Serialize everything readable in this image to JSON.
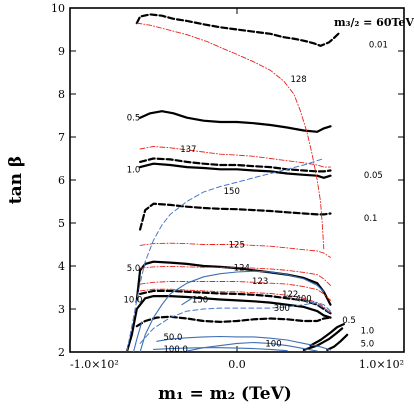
{
  "chart_data": {
    "type": "line",
    "title": "",
    "xlabel": "m₁ = m₂ (TeV)",
    "ylabel": "tan β",
    "xlim": [
      -100,
      100
    ],
    "ylim": [
      2,
      10
    ],
    "x_ticks": [
      -100,
      0,
      100
    ],
    "x_tick_labels": [
      "-1.0×10²",
      "0.0",
      "1.0×10²"
    ],
    "y_ticks": [
      2,
      3,
      4,
      5,
      6,
      7,
      8,
      9,
      10
    ],
    "y_tick_labels": [
      "2",
      "3",
      "4",
      "5",
      "6",
      "7",
      "8",
      "9",
      "10"
    ],
    "annotation": "m₃/₂ = 60TeV",
    "grid": false,
    "colors": {
      "black_solid": "#000000",
      "black_dashed": "#000000",
      "red_dashdot": "#e8231c",
      "blue_dashed": "#4a78c8",
      "blue_solid": "#3f6fb5"
    },
    "series": [
      {
        "label": "0.01",
        "style": "black_dashed",
        "label_pos": [
          79,
          9.15
        ],
        "x": [
          -60,
          -58,
          -52,
          -45,
          -38,
          -30,
          -20,
          -10,
          0,
          10,
          20,
          28,
          35,
          42,
          46,
          50,
          55,
          58,
          62
        ],
        "y": [
          9.65,
          9.8,
          9.85,
          9.82,
          9.75,
          9.7,
          9.62,
          9.55,
          9.5,
          9.45,
          9.4,
          9.32,
          9.28,
          9.22,
          9.18,
          9.12,
          9.2,
          9.3,
          9.45
        ]
      },
      {
        "label": "0.5",
        "style": "black_solid",
        "label_pos": [
          -66,
          7.45
        ],
        "x": [
          -58,
          -52,
          -45,
          -38,
          -30,
          -20,
          -10,
          0,
          10,
          20,
          30,
          40,
          48,
          52,
          56
        ],
        "y": [
          7.45,
          7.55,
          7.6,
          7.55,
          7.45,
          7.38,
          7.35,
          7.35,
          7.32,
          7.28,
          7.22,
          7.15,
          7.12,
          7.2,
          7.25
        ]
      },
      {
        "label": "1.0",
        "style": "black_solid",
        "label_pos": [
          -66,
          6.25
        ],
        "x": [
          -58,
          -50,
          -40,
          -30,
          -20,
          -10,
          0,
          10,
          20,
          30,
          40,
          48,
          52,
          56
        ],
        "y": [
          6.3,
          6.38,
          6.35,
          6.3,
          6.28,
          6.25,
          6.25,
          6.22,
          6.2,
          6.15,
          6.12,
          6.1,
          6.05,
          6.1
        ]
      },
      {
        "label": "0.05",
        "style": "black_dashed",
        "label_pos": [
          76,
          6.12
        ],
        "x": [
          -58,
          -50,
          -40,
          -30,
          -20,
          -10,
          0,
          10,
          20,
          30,
          40,
          48,
          52,
          56
        ],
        "y": [
          6.42,
          6.5,
          6.48,
          6.42,
          6.38,
          6.35,
          6.35,
          6.32,
          6.3,
          6.25,
          6.22,
          6.2,
          6.2,
          6.22
        ]
      },
      {
        "label": "0.1",
        "style": "black_dashed",
        "label_pos": [
          76,
          5.12
        ],
        "x": [
          -58,
          -55,
          -50,
          -40,
          -30,
          -20,
          -10,
          0,
          10,
          20,
          30,
          40,
          48,
          52,
          56
        ],
        "y": [
          4.85,
          5.3,
          5.45,
          5.42,
          5.38,
          5.35,
          5.33,
          5.32,
          5.3,
          5.28,
          5.25,
          5.22,
          5.2,
          5.2,
          5.22
        ]
      },
      {
        "label": "5.0",
        "style": "black_solid",
        "label_pos": [
          -66,
          3.95
        ],
        "x": [
          -60,
          -58,
          -55,
          -50,
          -40,
          -30,
          -20,
          -10,
          0,
          10,
          20,
          30,
          40,
          48,
          52,
          56
        ],
        "y": [
          3.2,
          3.9,
          4.05,
          4.1,
          4.08,
          4.05,
          4.0,
          3.98,
          3.95,
          3.9,
          3.85,
          3.8,
          3.72,
          3.6,
          3.4,
          3.1
        ]
      },
      {
        "label": "10.0",
        "style": "black_solid",
        "label_pos": [
          -68,
          3.22
        ],
        "x": [
          -66,
          -63,
          -60,
          -55,
          -50,
          -40,
          -30,
          -20,
          -10,
          0,
          10,
          20,
          30,
          40,
          48,
          52,
          56
        ],
        "y": [
          2.0,
          2.4,
          3.0,
          3.25,
          3.3,
          3.3,
          3.28,
          3.25,
          3.22,
          3.2,
          3.18,
          3.15,
          3.1,
          3.05,
          2.95,
          2.85,
          2.8
        ]
      },
      {
        "label": "0.5",
        "style": "black_dashed",
        "label_pos": [
          63,
          2.75
        ],
        "x": [
          -58,
          -55,
          -50,
          -40,
          -30,
          -20,
          -10,
          0,
          10,
          20,
          30,
          40,
          48,
          52,
          56
        ],
        "y": [
          3.35,
          3.38,
          3.42,
          3.42,
          3.4,
          3.38,
          3.36,
          3.35,
          3.33,
          3.3,
          3.25,
          3.2,
          3.1,
          3.0,
          2.9
        ]
      },
      {
        "label": "",
        "style": "black_dashed",
        "label_pos": null,
        "x": [
          -60,
          -55,
          -48,
          -40,
          -30,
          -20,
          -10,
          0,
          10,
          20,
          30,
          40,
          48,
          52,
          56
        ],
        "y": [
          2.6,
          2.72,
          2.8,
          2.82,
          2.78,
          2.72,
          2.7,
          2.72,
          2.76,
          2.78,
          2.76,
          2.72,
          2.72,
          2.78,
          2.8
        ]
      },
      {
        "label": "1.0",
        "style": "black_solid",
        "label_pos": [
          74,
          2.5
        ],
        "x": [
          44,
          50,
          56,
          60,
          64
        ],
        "y": [
          2.15,
          2.28,
          2.45,
          2.58,
          2.65
        ]
      },
      {
        "label": "5.0",
        "style": "black_solid",
        "label_pos": [
          74,
          2.2
        ],
        "x": [
          40,
          48,
          55,
          60,
          63
        ],
        "y": [
          2.05,
          2.15,
          2.3,
          2.45,
          2.55
        ]
      },
      {
        "label": "",
        "style": "black_solid",
        "label_pos": null,
        "x": [
          54,
          58,
          62,
          66
        ],
        "y": [
          2.05,
          2.12,
          2.25,
          2.4
        ]
      },
      {
        "label": "50.0",
        "style": "blue_solid",
        "label_pos": [
          -44,
          2.35
        ],
        "x": [
          -48,
          -40,
          -30,
          -20,
          -10,
          0,
          10,
          20,
          30,
          40,
          50,
          56
        ],
        "y": [
          2.25,
          2.3,
          2.33,
          2.35,
          2.36,
          2.35,
          2.35,
          2.32,
          2.28,
          2.2,
          2.12,
          2.05
        ]
      },
      {
        "label": "100.0",
        "style": "blue_solid",
        "label_pos": [
          -44,
          2.07
        ],
        "x": [
          -50,
          -40,
          -30,
          -20,
          -10,
          0,
          10,
          20,
          30
        ],
        "y": [
          2.06,
          2.08,
          2.09,
          2.1,
          2.1,
          2.09,
          2.08,
          2.06,
          2.03
        ]
      },
      {
        "label": "100",
        "style": "blue_solid",
        "label_pos": [
          17,
          2.2
        ],
        "x": [
          -30,
          -20,
          -10,
          0,
          10,
          20,
          30,
          40,
          48
        ],
        "y": [
          2.02,
          2.1,
          2.15,
          2.2,
          2.22,
          2.2,
          2.15,
          2.08,
          2.02
        ]
      },
      {
        "label": "",
        "style": "blue_solid",
        "label_pos": null,
        "x": [
          -58,
          -55,
          -50,
          -45,
          -40,
          -30,
          -20,
          -10,
          0,
          10,
          20,
          30,
          40,
          48,
          52
        ],
        "y": [
          2.0,
          2.4,
          2.8,
          3.1,
          3.35,
          3.6,
          3.75,
          3.82,
          3.86,
          3.88,
          3.86,
          3.8,
          3.7,
          3.55,
          3.4
        ]
      },
      {
        "label": "",
        "style": "blue_solid",
        "label_pos": null,
        "x": [
          -62,
          -60,
          -57
        ],
        "y": [
          2.0,
          2.3,
          2.7
        ]
      },
      {
        "label": "128",
        "style": "red_dashdot",
        "label_pos": [
          32,
          8.35
        ],
        "x": [
          -60,
          -52,
          -42,
          -30,
          -18,
          -8,
          0,
          10,
          20,
          28,
          34,
          38,
          42,
          45,
          48,
          50,
          51,
          52
        ],
        "y": [
          9.65,
          9.6,
          9.5,
          9.38,
          9.22,
          9.05,
          8.92,
          8.75,
          8.55,
          8.3,
          8.0,
          7.6,
          7.1,
          6.6,
          6.0,
          5.5,
          5.0,
          4.4
        ]
      },
      {
        "label": "137",
        "style": "red_dashdot",
        "label_pos": [
          -34,
          6.72
        ],
        "x": [
          -58,
          -50,
          -40,
          -30,
          -20,
          -10,
          0,
          10,
          20,
          30,
          40,
          48,
          52,
          56
        ],
        "y": [
          6.72,
          6.78,
          6.75,
          6.7,
          6.65,
          6.6,
          6.58,
          6.55,
          6.5,
          6.45,
          6.4,
          6.35,
          6.3,
          6.3
        ]
      },
      {
        "label": "125",
        "style": "red_dashdot",
        "label_pos": [
          -5,
          4.5
        ],
        "x": [
          -58,
          -50,
          -40,
          -30,
          -20,
          -10,
          0,
          10,
          20,
          30,
          40,
          48,
          52,
          56
        ],
        "y": [
          4.48,
          4.52,
          4.53,
          4.52,
          4.5,
          4.5,
          4.5,
          4.48,
          4.46,
          4.42,
          4.38,
          4.35,
          4.3,
          4.2
        ]
      },
      {
        "label": "124",
        "style": "red_dashdot",
        "label_pos": [
          -2,
          3.97
        ],
        "x": [
          -58,
          -50,
          -40,
          -30,
          -20,
          -10,
          0,
          10,
          20,
          30,
          40,
          48,
          52,
          56
        ],
        "y": [
          3.95,
          3.98,
          3.99,
          3.98,
          3.97,
          3.97,
          3.97,
          3.95,
          3.93,
          3.9,
          3.85,
          3.8,
          3.7,
          3.55
        ]
      },
      {
        "label": "123",
        "style": "red_dashdot",
        "label_pos": [
          9,
          3.65
        ],
        "x": [
          -58,
          -50,
          -40,
          -30,
          -20,
          -10,
          0,
          10,
          20,
          30,
          40,
          48,
          52,
          56
        ],
        "y": [
          3.58,
          3.62,
          3.64,
          3.64,
          3.64,
          3.64,
          3.64,
          3.62,
          3.6,
          3.58,
          3.52,
          3.45,
          3.35,
          3.2
        ]
      },
      {
        "label": "122",
        "style": "red_dashdot",
        "label_pos": [
          27,
          3.35
        ],
        "x": [
          -58,
          -50,
          -40,
          -30,
          -20,
          -10,
          0,
          10,
          20,
          30,
          40,
          48,
          52,
          56
        ],
        "y": [
          3.42,
          3.46,
          3.46,
          3.44,
          3.42,
          3.4,
          3.4,
          3.38,
          3.36,
          3.32,
          3.25,
          3.15,
          3.05,
          2.9
        ]
      },
      {
        "label": "150",
        "style": "blue_dashed",
        "label_pos": [
          -8,
          5.75
        ],
        "x": [
          -66,
          -62,
          -58,
          -55,
          -50,
          -45,
          -40,
          -30,
          -20,
          -10,
          0,
          10,
          20,
          30,
          40,
          48,
          52
        ],
        "y": [
          2.0,
          2.8,
          3.6,
          4.1,
          4.6,
          4.95,
          5.2,
          5.5,
          5.72,
          5.85,
          5.95,
          6.05,
          6.15,
          6.25,
          6.35,
          6.45,
          6.5
        ]
      },
      {
        "label": "300",
        "style": "blue_dashed",
        "label_pos": [
          22,
          3.02
        ],
        "x": [
          -58,
          -50,
          -40,
          -30,
          -20,
          -10,
          0,
          10,
          20,
          30,
          40,
          48,
          52,
          56
        ],
        "y": [
          2.2,
          2.55,
          2.8,
          2.95,
          3.0,
          3.02,
          3.02,
          3.02,
          3.02,
          3.05,
          3.1,
          3.15,
          3.1,
          2.95
        ]
      },
      {
        "label": "400",
        "style": "blue_dashed",
        "label_pos": [
          35,
          3.24
        ],
        "x": [
          30,
          40,
          48,
          52,
          56
        ],
        "y": [
          3.28,
          3.2,
          3.12,
          3.02,
          2.9
        ]
      },
      {
        "label": "150",
        "style": "blue_solid",
        "label_pos": [
          -27,
          3.22
        ],
        "x": [
          -33,
          -25
        ],
        "y": [
          3.1,
          3.3
        ]
      }
    ]
  }
}
